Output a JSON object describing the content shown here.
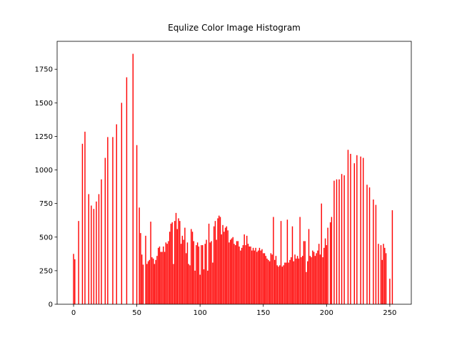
{
  "chart_data": {
    "type": "bar",
    "title": "Equlize Color Image Histogram",
    "color": "#ff0000",
    "x": [
      0,
      1,
      2,
      3,
      4,
      5,
      6,
      7,
      8,
      9,
      10,
      11,
      12,
      13,
      14,
      15,
      16,
      17,
      18,
      19,
      20,
      21,
      22,
      23,
      24,
      25,
      26,
      27,
      28,
      29,
      30,
      31,
      32,
      33,
      34,
      35,
      36,
      37,
      38,
      39,
      40,
      41,
      42,
      43,
      44,
      45,
      46,
      47,
      48,
      49,
      50,
      51,
      52,
      53,
      54,
      55,
      56,
      57,
      58,
      59,
      60,
      61,
      62,
      63,
      64,
      65,
      66,
      67,
      68,
      69,
      70,
      71,
      72,
      73,
      74,
      75,
      76,
      77,
      78,
      79,
      80,
      81,
      82,
      83,
      84,
      85,
      86,
      87,
      88,
      89,
      90,
      91,
      92,
      93,
      94,
      95,
      96,
      97,
      98,
      99,
      100,
      101,
      102,
      103,
      104,
      105,
      106,
      107,
      108,
      109,
      110,
      111,
      112,
      113,
      114,
      115,
      116,
      117,
      118,
      119,
      120,
      121,
      122,
      123,
      124,
      125,
      126,
      127,
      128,
      129,
      130,
      131,
      132,
      133,
      134,
      135,
      136,
      137,
      138,
      139,
      140,
      141,
      142,
      143,
      144,
      145,
      146,
      147,
      148,
      149,
      150,
      151,
      152,
      153,
      154,
      155,
      156,
      157,
      158,
      159,
      160,
      161,
      162,
      163,
      164,
      165,
      166,
      167,
      168,
      169,
      170,
      171,
      172,
      173,
      174,
      175,
      176,
      177,
      178,
      179,
      180,
      181,
      182,
      183,
      184,
      185,
      186,
      187,
      188,
      189,
      190,
      191,
      192,
      193,
      194,
      195,
      196,
      197,
      198,
      199,
      200,
      201,
      202,
      203,
      204,
      205,
      206,
      207,
      208,
      209,
      210,
      211,
      212,
      213,
      214,
      215,
      216,
      217,
      218,
      219,
      220,
      221,
      222,
      223,
      224,
      225,
      226,
      227,
      228,
      229,
      230,
      231,
      232,
      233,
      234,
      235,
      236,
      237,
      238,
      239,
      240,
      241,
      242,
      243,
      244,
      245,
      246,
      247,
      248,
      249,
      250,
      251,
      252,
      253,
      254,
      255
    ],
    "values": [
      375,
      335,
      0,
      0,
      620,
      0,
      0,
      1195,
      0,
      1285,
      0,
      0,
      820,
      0,
      735,
      0,
      710,
      0,
      765,
      0,
      820,
      0,
      930,
      0,
      0,
      1090,
      0,
      1245,
      0,
      0,
      0,
      1245,
      0,
      0,
      1340,
      0,
      0,
      0,
      1500,
      0,
      0,
      0,
      1690,
      0,
      0,
      0,
      0,
      1865,
      0,
      0,
      1185,
      0,
      720,
      530,
      370,
      295,
      0,
      510,
      300,
      320,
      330,
      615,
      350,
      340,
      300,
      330,
      360,
      420,
      430,
      390,
      390,
      430,
      390,
      460,
      450,
      470,
      540,
      600,
      610,
      300,
      620,
      680,
      560,
      640,
      620,
      450,
      510,
      480,
      570,
      380,
      460,
      300,
      290,
      560,
      540,
      470,
      250,
      440,
      460,
      430,
      220,
      440,
      440,
      260,
      450,
      480,
      250,
      600,
      460,
      470,
      310,
      580,
      620,
      480,
      640,
      660,
      650,
      520,
      590,
      540,
      570,
      580,
      550,
      460,
      480,
      490,
      500,
      450,
      440,
      470,
      470,
      430,
      400,
      420,
      440,
      520,
      440,
      510,
      450,
      430,
      430,
      400,
      420,
      400,
      420,
      390,
      400,
      420,
      400,
      410,
      380,
      380,
      360,
      340,
      330,
      320,
      380,
      370,
      650,
      330,
      360,
      290,
      280,
      290,
      620,
      280,
      290,
      310,
      310,
      630,
      310,
      330,
      350,
      580,
      320,
      370,
      340,
      360,
      340,
      650,
      350,
      360,
      470,
      470,
      240,
      320,
      560,
      360,
      350,
      400,
      390,
      360,
      380,
      400,
      450,
      370,
      750,
      350,
      420,
      490,
      440,
      570,
      0,
      610,
      650,
      0,
      920,
      0,
      930,
      0,
      930,
      0,
      970,
      0,
      960,
      0,
      0,
      1150,
      0,
      1120,
      0,
      0,
      1050,
      0,
      1110,
      0,
      0,
      1100,
      0,
      1090,
      0,
      0,
      890,
      0,
      870,
      0,
      0,
      780,
      0,
      740,
      0,
      450,
      0,
      440,
      330,
      450,
      420,
      380,
      0,
      0,
      190,
      0,
      700,
      0,
      0,
      0
    ],
    "xlim": [
      -13,
      267
    ],
    "ylim": [
      0,
      1958
    ],
    "xticks": [
      0,
      50,
      100,
      150,
      200,
      250
    ],
    "yticks": [
      0,
      250,
      500,
      750,
      1000,
      1250,
      1500,
      1750
    ]
  }
}
